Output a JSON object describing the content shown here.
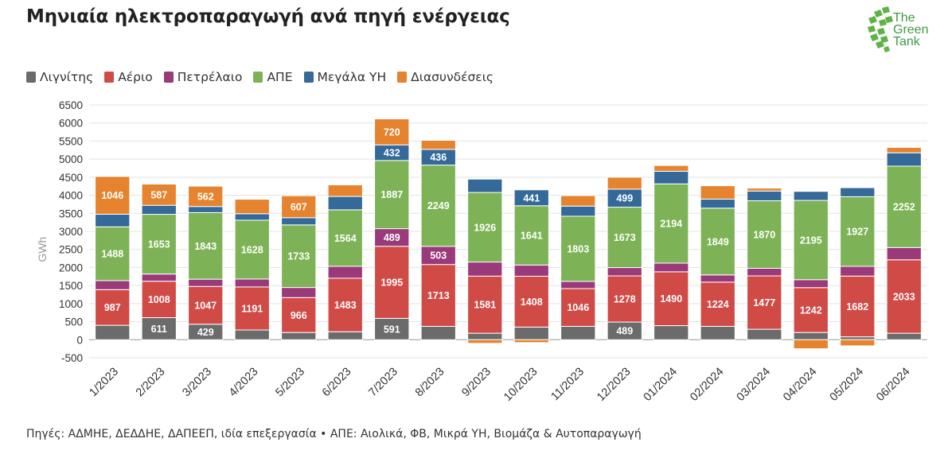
{
  "header": {
    "title": "Μηνιαία ηλεκτροπαραγωγή ανά πηγή ενέργειας"
  },
  "logo": {
    "line1": "The",
    "line2": "Green",
    "line3": "Tank"
  },
  "footer": {
    "text": "Πηγές: ΑΔΜΗΕ, ΔΕΔΔΗΕ, ΔΑΠΕΕΠ, ιδία επεξεργασία • ΑΠΕ: Αιολικά, ΦΒ, Μικρά ΥΗ, Βιομάζα & Αυτοπαραγωγή"
  },
  "chart_data": {
    "type": "bar",
    "stacked": true,
    "title": "Μηνιαία ηλεκτροπαραγωγή ανά πηγή ενέργειας",
    "xlabel": "",
    "ylabel": "GWh",
    "ylim": [
      -500,
      6500
    ],
    "yticks": [
      -500,
      0,
      500,
      1000,
      1500,
      2000,
      2500,
      3000,
      3500,
      4000,
      4500,
      5000,
      5500,
      6000,
      6500
    ],
    "grid": true,
    "legend_position": "top-left",
    "categories": [
      "1/2023",
      "2/2023",
      "3/2023",
      "4/2023",
      "5/2023",
      "6/2023",
      "7/2023",
      "8/2023",
      "9/2023",
      "10/2023",
      "11/2023",
      "12/2023",
      "01/2024",
      "02/2024",
      "03/2024",
      "04/2024",
      "05/2024",
      "06/2024"
    ],
    "series": [
      {
        "name": "Λιγνίτης",
        "color": "#6b6b6b",
        "values": [
          400,
          611,
          429,
          270,
          200,
          220,
          591,
          370,
          180,
          350,
          370,
          489,
          390,
          370,
          290,
          200,
          80,
          180
        ],
        "labels": [
          null,
          "611",
          "429",
          null,
          null,
          null,
          "591",
          null,
          null,
          null,
          null,
          "489",
          null,
          null,
          null,
          null,
          null,
          null
        ]
      },
      {
        "name": "Αέριο",
        "color": "#d04a46",
        "values": [
          987,
          1008,
          1047,
          1191,
          966,
          1483,
          1995,
          1713,
          1581,
          1408,
          1046,
          1278,
          1490,
          1224,
          1477,
          1242,
          1682,
          2033
        ],
        "labels": [
          "987",
          "1008",
          "1047",
          "1191",
          "966",
          "1483",
          "1995",
          "1713",
          "1581",
          "1408",
          "1046",
          "1278",
          "1490",
          "1224",
          "1477",
          "1242",
          "1682",
          "2033"
        ]
      },
      {
        "name": "Πετρέλαιο",
        "color": "#9a3a7b",
        "values": [
          250,
          200,
          200,
          220,
          280,
          330,
          489,
          503,
          390,
          310,
          200,
          230,
          240,
          200,
          210,
          220,
          270,
          340
        ],
        "labels": [
          null,
          null,
          null,
          null,
          null,
          null,
          "489",
          "503",
          null,
          null,
          null,
          null,
          null,
          null,
          null,
          null,
          null,
          null
        ]
      },
      {
        "name": "ΑΠΕ",
        "color": "#7db356",
        "values": [
          1488,
          1653,
          1843,
          1628,
          1733,
          1564,
          1887,
          2249,
          1926,
          1641,
          1803,
          1673,
          2194,
          1849,
          1870,
          2195,
          1927,
          2252
        ],
        "labels": [
          "1488",
          "1653",
          "1843",
          "1628",
          "1733",
          "1564",
          "1887",
          "2249",
          "1926",
          "1641",
          "1803",
          "1673",
          "2194",
          "1849",
          "1870",
          "2195",
          "1927",
          "2252"
        ]
      },
      {
        "name": "Μεγάλα ΥΗ",
        "color": "#34699a",
        "values": [
          350,
          250,
          170,
          180,
          200,
          370,
          432,
          436,
          370,
          441,
          280,
          499,
          350,
          250,
          270,
          250,
          250,
          370
        ],
        "labels": [
          null,
          null,
          null,
          null,
          null,
          null,
          "432",
          "436",
          null,
          "441",
          null,
          "499",
          null,
          null,
          null,
          null,
          null,
          null
        ]
      },
      {
        "name": "Διασυνδέσεις",
        "color": "#e5832e",
        "values": [
          1046,
          587,
          562,
          400,
          607,
          320,
          720,
          250,
          -100,
          -80,
          290,
          330,
          160,
          370,
          80,
          -250,
          -170,
          150
        ],
        "labels": [
          "1046",
          "587",
          "562",
          null,
          "607",
          null,
          "720",
          null,
          null,
          null,
          null,
          null,
          null,
          null,
          null,
          null,
          null,
          null
        ]
      }
    ]
  }
}
